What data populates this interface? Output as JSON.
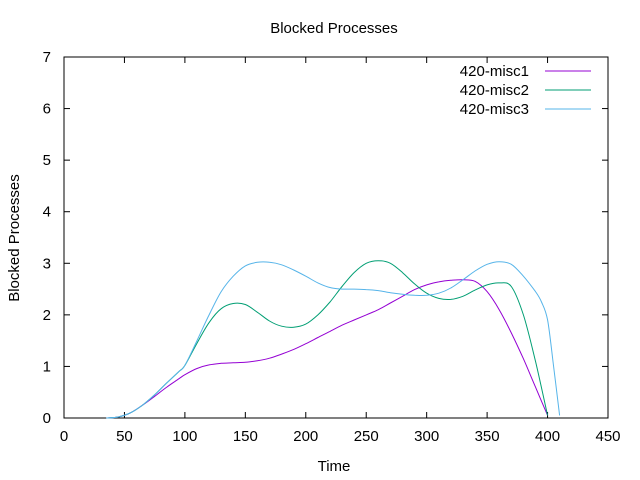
{
  "chart_data": {
    "type": "line",
    "title": "Blocked Processes",
    "xlabel": "Time",
    "ylabel": "Blocked Processes",
    "xlim": [
      0,
      450
    ],
    "ylim": [
      0,
      7
    ],
    "xticks": [
      0,
      50,
      100,
      150,
      200,
      250,
      300,
      350,
      400,
      450
    ],
    "yticks": [
      0,
      1,
      2,
      3,
      4,
      5,
      6,
      7
    ],
    "grid": false,
    "legend": "top-right",
    "series": [
      {
        "name": "420-misc1",
        "color": "#9400d3",
        "x": [
          35,
          45,
          55,
          65,
          75,
          85,
          95,
          100,
          110,
          120,
          130,
          140,
          150,
          160,
          170,
          180,
          190,
          200,
          210,
          220,
          230,
          240,
          250,
          260,
          270,
          280,
          290,
          300,
          310,
          320,
          330,
          340,
          350,
          360,
          370,
          380,
          390,
          400
        ],
        "y": [
          0,
          0.02,
          0.1,
          0.25,
          0.42,
          0.6,
          0.76,
          0.84,
          0.96,
          1.03,
          1.06,
          1.07,
          1.08,
          1.11,
          1.16,
          1.24,
          1.33,
          1.44,
          1.56,
          1.68,
          1.8,
          1.9,
          2.0,
          2.1,
          2.23,
          2.36,
          2.49,
          2.58,
          2.64,
          2.67,
          2.68,
          2.65,
          2.45,
          2.1,
          1.65,
          1.15,
          0.6,
          0.05
        ]
      },
      {
        "name": "420-misc2",
        "color": "#009e73",
        "x": [
          35,
          45,
          55,
          65,
          75,
          85,
          95,
          100,
          110,
          120,
          130,
          140,
          150,
          160,
          170,
          180,
          190,
          200,
          210,
          220,
          230,
          240,
          250,
          260,
          270,
          280,
          290,
          300,
          310,
          320,
          330,
          340,
          350,
          360,
          370,
          380,
          390,
          400
        ],
        "y": [
          0,
          0.02,
          0.1,
          0.25,
          0.45,
          0.68,
          0.9,
          1.02,
          1.45,
          1.85,
          2.12,
          2.22,
          2.2,
          2.05,
          1.88,
          1.78,
          1.76,
          1.82,
          2.0,
          2.25,
          2.55,
          2.82,
          3.0,
          3.05,
          3.0,
          2.82,
          2.6,
          2.42,
          2.32,
          2.3,
          2.36,
          2.48,
          2.58,
          2.62,
          2.55,
          2.0,
          1.1,
          0.05
        ]
      },
      {
        "name": "420-misc3",
        "color": "#56b4e9",
        "x": [
          35,
          45,
          55,
          65,
          75,
          85,
          95,
          100,
          110,
          120,
          130,
          140,
          150,
          160,
          170,
          180,
          190,
          200,
          210,
          220,
          230,
          240,
          250,
          260,
          270,
          280,
          290,
          300,
          310,
          320,
          330,
          340,
          350,
          360,
          370,
          380,
          390,
          395,
          400,
          405,
          410
        ],
        "y": [
          0,
          0.02,
          0.1,
          0.25,
          0.45,
          0.68,
          0.9,
          1.02,
          1.5,
          2.0,
          2.45,
          2.75,
          2.95,
          3.02,
          3.02,
          2.97,
          2.87,
          2.75,
          2.62,
          2.53,
          2.5,
          2.5,
          2.49,
          2.47,
          2.43,
          2.4,
          2.38,
          2.38,
          2.42,
          2.52,
          2.68,
          2.85,
          2.98,
          3.03,
          2.98,
          2.75,
          2.45,
          2.25,
          1.9,
          1.0,
          0.05
        ]
      }
    ]
  }
}
